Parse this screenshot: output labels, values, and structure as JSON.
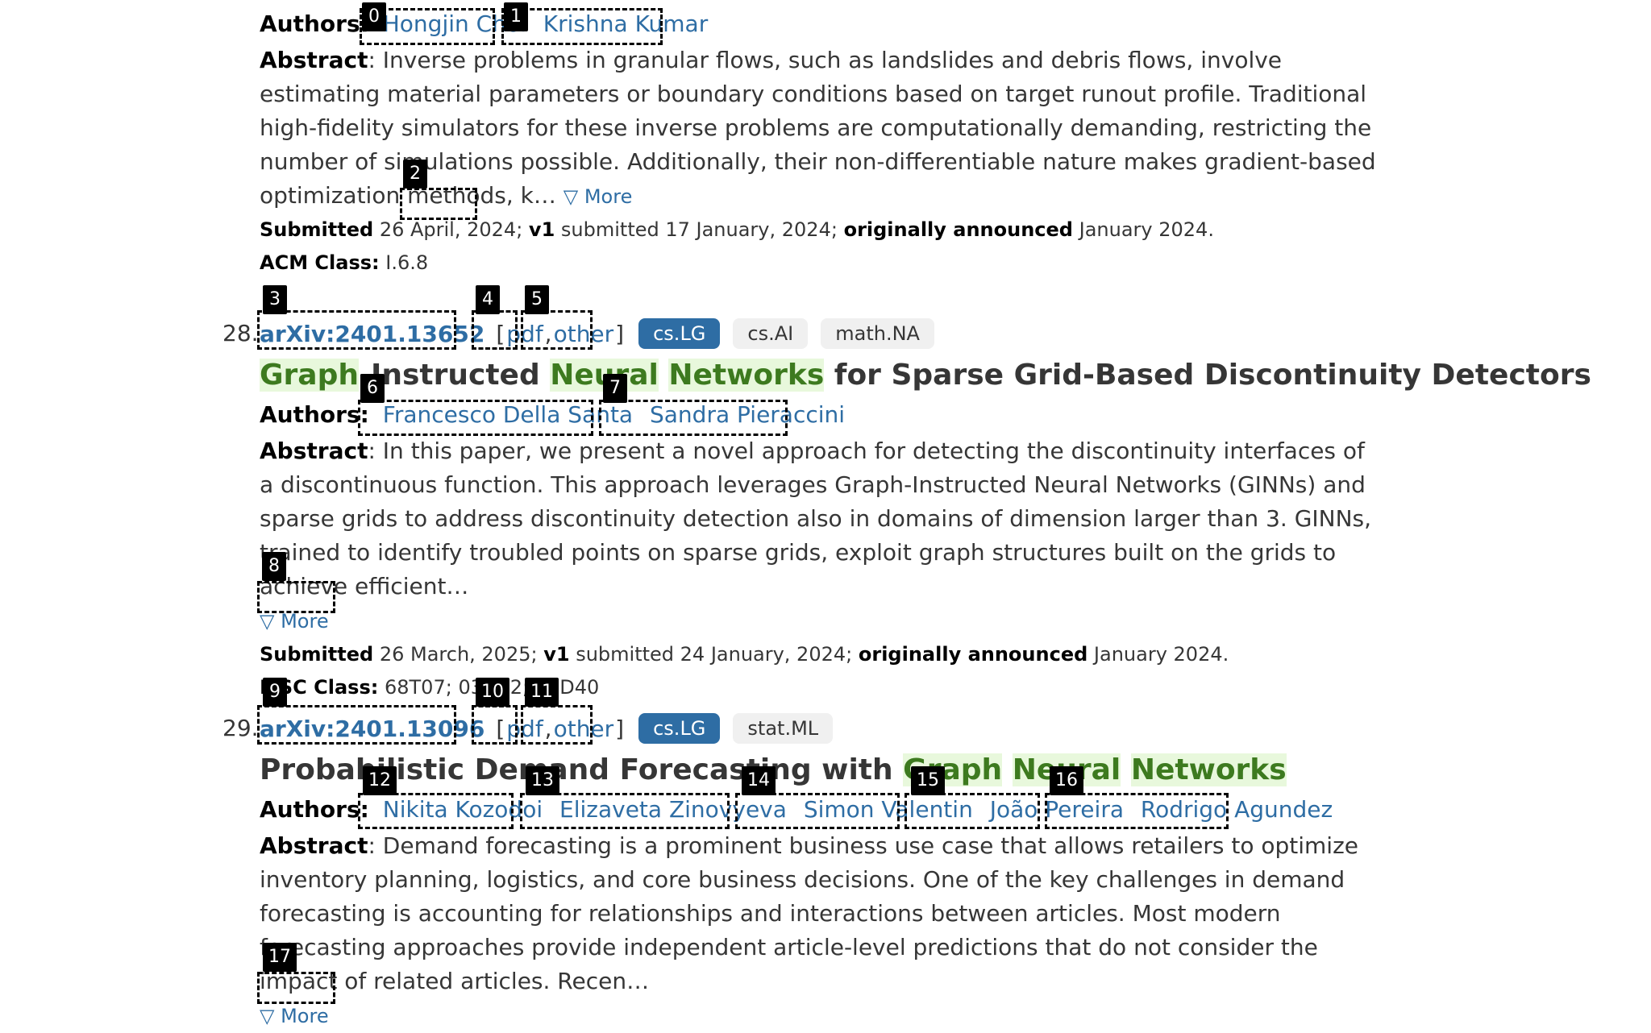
{
  "entry27": {
    "authors_label": "Authors:",
    "authors": [
      "Hongjin Choi",
      "Krishna Kumar"
    ],
    "abstract_label": "Abstract",
    "abstract_text": ": Inverse problems in granular flows, such as landslides and debris flows, involve estimating material parameters or boundary conditions based on target runout profile. Traditional high-fidelity simulators for these inverse problems are computationally demanding, restricting the number of simulations possible. Additionally, their non-differentiable nature makes gradient-based optimization methods, k…",
    "more_label": "▽ More",
    "submitted_label": "Submitted",
    "submitted_date": "26 April, 2024;",
    "v1_label": "v1",
    "v1_text": "submitted 17 January, 2024;",
    "announced_label": "originally announced",
    "announced_text": "January 2024.",
    "class_label": "ACM Class:",
    "class_value": "I.6.8"
  },
  "entry28": {
    "number": "28.",
    "arxiv_id": "arXiv:2401.13652",
    "pdf_label": "pdf",
    "other_label": "other",
    "tags": [
      {
        "label": "cs.LG",
        "primary": true
      },
      {
        "label": "cs.AI",
        "primary": false
      },
      {
        "label": "math.NA",
        "primary": false
      }
    ],
    "title_parts": {
      "p1": "Graph",
      "p2": "-Instructed ",
      "p3": "Neural",
      "p4": " ",
      "p5": "Networks",
      "p6": " for Sparse Grid-Based Discontinuity Detectors"
    },
    "authors_label": "Authors:",
    "authors": [
      "Francesco Della Santa",
      "Sandra Pieraccini"
    ],
    "abstract_label": "Abstract",
    "abstract_text": ": In this paper, we present a novel approach for detecting the discontinuity interfaces of a discontinuous function. This approach leverages Graph-Instructed Neural Networks (GINNs) and sparse grids to address discontinuity detection also in domains of dimension larger than 3. GINNs, trained to identify troubled points on sparse grids, exploit graph structures built on the grids to achieve efficient…",
    "more_label": "▽ More",
    "submitted_label": "Submitted",
    "submitted_date": "26 March, 2025;",
    "v1_label": "v1",
    "v1_text": "submitted 24 January, 2024;",
    "announced_label": "originally announced",
    "announced_text": "January 2024.",
    "class_label": "MSC Class:",
    "class_value": "68T07; 03D32; 65D40"
  },
  "entry29": {
    "number": "29.",
    "arxiv_id": "arXiv:2401.13096",
    "pdf_label": "pdf",
    "other_label": "other",
    "tags": [
      {
        "label": "cs.LG",
        "primary": true
      },
      {
        "label": "stat.ML",
        "primary": false
      }
    ],
    "title_parts": {
      "p1": "Probabilistic Demand Forecasting with ",
      "p2": "Graph",
      "p3": " ",
      "p4": "Neural",
      "p5": " ",
      "p6": "Networks"
    },
    "authors_label": "Authors:",
    "authors": [
      "Nikita Kozodoi",
      "Elizaveta Zinovyeva",
      "Simon Valentin",
      "João Pereira",
      "Rodrigo Agundez"
    ],
    "abstract_label": "Abstract",
    "abstract_text": ": Demand forecasting is a prominent business use case that allows retailers to optimize inventory planning, logistics, and core business decisions. One of the key challenges in demand forecasting is accounting for relationships and interactions between articles. Most modern forecasting approaches provide independent article-level predictions that do not consider the impact of related articles. Recen…",
    "more_label": "▽ More"
  },
  "markers": [
    "0",
    "1",
    "2",
    "3",
    "4",
    "5",
    "6",
    "7",
    "8",
    "9",
    "10",
    "11",
    "12",
    "13",
    "14",
    "15",
    "16",
    "17"
  ],
  "colors": {
    "link": "#2e6da4",
    "highlight_bg": "#e8f8dc",
    "highlight_text": "#3d7a1f",
    "primary_tag": "#2e6da4"
  }
}
